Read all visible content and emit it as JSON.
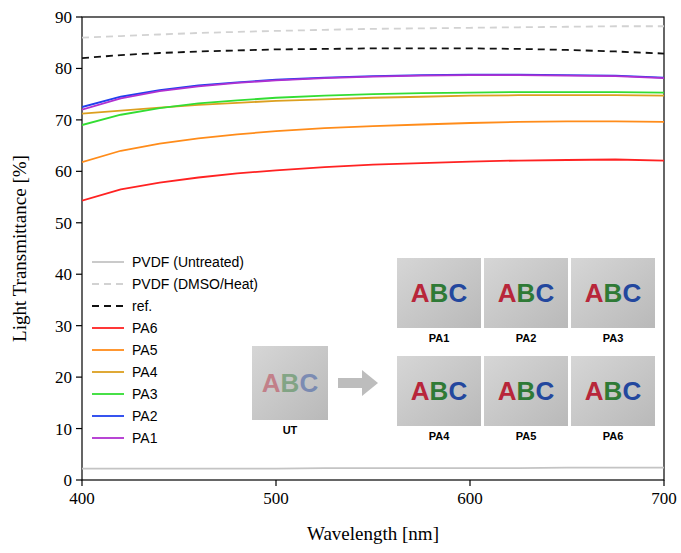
{
  "chart_data": {
    "type": "line",
    "x_label": "Wavelength [nm]",
    "y_label": "Light Transmittance [%]",
    "x": [
      400,
      420,
      440,
      460,
      480,
      500,
      525,
      550,
      575,
      600,
      625,
      650,
      675,
      700
    ],
    "xlim": [
      400,
      700
    ],
    "xticks": [
      400,
      500,
      600,
      700
    ],
    "ylim": [
      0,
      90
    ],
    "yticks": [
      0,
      10,
      20,
      30,
      40,
      50,
      60,
      70,
      80,
      90
    ],
    "grid": false,
    "legend": "lower left",
    "series": [
      {
        "name": "PVDF (Untreated)",
        "color": "#c4c4c4",
        "line_style": "solid",
        "values": [
          2.2,
          2.2,
          2.2,
          2.2,
          2.2,
          2.2,
          2.3,
          2.3,
          2.3,
          2.3,
          2.3,
          2.4,
          2.4,
          2.4
        ]
      },
      {
        "name": "PVDF (DMSO/Heat)",
        "color": "#d2d2d2",
        "line_style": "dashed",
        "values": [
          86.0,
          86.3,
          86.6,
          86.9,
          87.1,
          87.3,
          87.5,
          87.7,
          87.8,
          87.9,
          88.0,
          88.1,
          88.2,
          88.2
        ]
      },
      {
        "name": "ref.",
        "color": "#111111",
        "line_style": "dashed",
        "values": [
          82.0,
          82.6,
          83.0,
          83.3,
          83.5,
          83.7,
          83.8,
          83.9,
          83.9,
          83.9,
          83.8,
          83.6,
          83.3,
          82.9
        ]
      },
      {
        "name": "PA6",
        "color": "#ff2222",
        "line_style": "solid",
        "values": [
          54.3,
          56.5,
          57.8,
          58.8,
          59.6,
          60.2,
          60.8,
          61.3,
          61.6,
          61.9,
          62.1,
          62.2,
          62.3,
          62.1
        ]
      },
      {
        "name": "PA5",
        "color": "#ff8c1a",
        "line_style": "solid",
        "values": [
          61.8,
          64.0,
          65.4,
          66.4,
          67.2,
          67.8,
          68.4,
          68.8,
          69.1,
          69.4,
          69.6,
          69.7,
          69.7,
          69.6
        ]
      },
      {
        "name": "PA4",
        "color": "#dca020",
        "line_style": "solid",
        "values": [
          71.2,
          71.8,
          72.4,
          72.9,
          73.3,
          73.7,
          74.0,
          74.3,
          74.5,
          74.7,
          74.8,
          74.8,
          74.8,
          74.7
        ]
      },
      {
        "name": "PA3",
        "color": "#33dd33",
        "line_style": "solid",
        "values": [
          69.0,
          71.0,
          72.3,
          73.2,
          73.8,
          74.3,
          74.7,
          75.0,
          75.2,
          75.3,
          75.4,
          75.4,
          75.4,
          75.3
        ]
      },
      {
        "name": "PA2",
        "color": "#2040ee",
        "line_style": "solid",
        "values": [
          72.5,
          74.5,
          75.8,
          76.7,
          77.3,
          77.8,
          78.2,
          78.5,
          78.7,
          78.8,
          78.8,
          78.7,
          78.6,
          78.2
        ]
      },
      {
        "name": "PA1",
        "color": "#b030d0",
        "line_style": "solid",
        "values": [
          72.0,
          74.2,
          75.6,
          76.5,
          77.2,
          77.7,
          78.1,
          78.4,
          78.6,
          78.7,
          78.7,
          78.6,
          78.5,
          78.1
        ]
      }
    ],
    "inset": {
      "text": "ABC",
      "before": "UT",
      "after": [
        "PA1",
        "PA2",
        "PA3",
        "PA4",
        "PA5",
        "PA6"
      ]
    }
  }
}
